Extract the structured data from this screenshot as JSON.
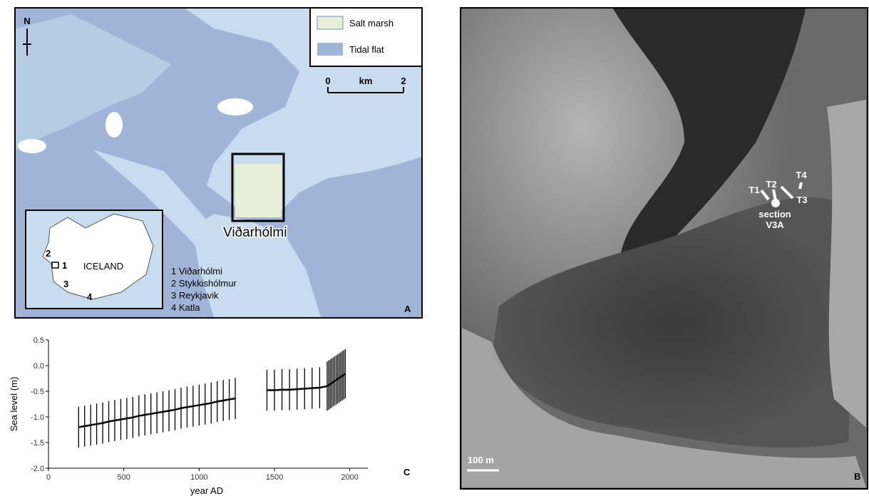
{
  "panel_a": {
    "north": "N",
    "legend": [
      "Salt marsh",
      "Tidal flat"
    ],
    "scale": [
      "0",
      "km",
      "2"
    ],
    "site": "Viðarhólmi",
    "inset_title": "ICELAND",
    "inset_numbers": [
      "1",
      "2",
      "3",
      "4"
    ],
    "sites_list": [
      "1 Viðarhólmi",
      "2 Stykkishólmur",
      "3 Reykjavik",
      "4 Katla"
    ],
    "panel": "A"
  },
  "chart_data": {
    "type": "errorbar",
    "ylabel": "Sea level (m)",
    "xlabel": "year AD",
    "panel": "C",
    "color": "#000000",
    "x": [
      200,
      240,
      280,
      320,
      360,
      400,
      440,
      480,
      520,
      560,
      600,
      640,
      680,
      720,
      760,
      800,
      840,
      880,
      920,
      960,
      1000,
      1040,
      1080,
      1120,
      1160,
      1200,
      1240,
      1320,
      1450,
      1500,
      1550,
      1600,
      1650,
      1700,
      1750,
      1800,
      1850,
      1860,
      1870,
      1880,
      1890,
      1900,
      1910,
      1920,
      1930,
      1940,
      1950,
      1960,
      1970
    ],
    "values": [
      -1.2,
      -1.18,
      -1.16,
      -1.14,
      -1.12,
      -1.09,
      -1.07,
      -1.05,
      -1.03,
      -1.01,
      -0.98,
      -0.96,
      -0.94,
      -0.92,
      -0.9,
      -0.88,
      -0.86,
      -0.83,
      -0.81,
      -0.79,
      -0.77,
      -0.75,
      -0.73,
      -0.7,
      -0.68,
      -0.66,
      -0.64,
      null,
      -0.48,
      -0.48,
      -0.47,
      -0.47,
      -0.46,
      -0.45,
      -0.44,
      -0.43,
      -0.4,
      -0.38,
      -0.36,
      -0.34,
      -0.32,
      -0.3,
      -0.28,
      -0.26,
      -0.24,
      -0.22,
      -0.2,
      -0.18,
      -0.16
    ],
    "errors": [
      0.4,
      0.4,
      0.4,
      0.4,
      0.4,
      0.4,
      0.4,
      0.4,
      0.4,
      0.4,
      0.4,
      0.4,
      0.4,
      0.4,
      0.4,
      0.4,
      0.4,
      0.4,
      0.4,
      0.4,
      0.4,
      0.4,
      0.4,
      0.4,
      0.4,
      0.4,
      0.4,
      null,
      0.4,
      0.4,
      0.4,
      0.4,
      0.4,
      0.4,
      0.4,
      0.4,
      0.48,
      0.48,
      0.48,
      0.48,
      0.48,
      0.48,
      0.48,
      0.48,
      0.48,
      0.48,
      0.48,
      0.48,
      0.48
    ],
    "xlim": [
      0,
      2120
    ],
    "xticks": [
      0,
      500,
      1000,
      1500,
      2000
    ],
    "ylim": [
      -2.0,
      0.5
    ],
    "yticks": [
      {
        "value": -2,
        "label": "-2.0"
      },
      -1.5,
      {
        "value": -1,
        "label": "-1.0"
      },
      -0.5,
      {
        "value": 0,
        "label": "0.0"
      },
      0.5
    ]
  },
  "panel_b": {
    "transects": [
      "T1",
      "T2",
      "T3",
      "T4"
    ],
    "section": [
      "section",
      "V3A"
    ],
    "scale": "100 m",
    "panel": "B"
  }
}
